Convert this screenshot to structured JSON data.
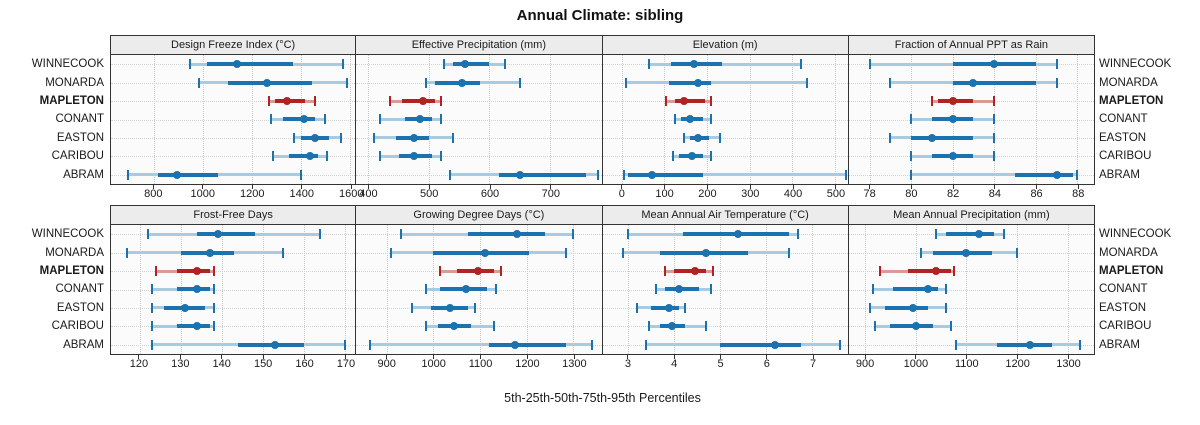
{
  "title": "Annual Climate: sibling",
  "caption": "5th-25th-50th-75th-95th Percentiles",
  "colors": {
    "series_blue": "#1b72ae",
    "series_blue_light": "#a8cbe2",
    "highlight_red": "#b22222",
    "highlight_red_light": "#d89c96",
    "panel_header_bg": "#ececec",
    "panel_border": "#333333",
    "grid": "#c9c9c9",
    "plot_bg": "#fbfbfb"
  },
  "chart_data": {
    "type": "dot-whisker percentile plot",
    "percentiles": [
      5,
      25,
      50,
      75,
      95
    ],
    "title": "Annual Climate: sibling",
    "legend_note": "5th-25th-50th-75th-95th Percentiles",
    "categories": [
      "WINNECOOK",
      "MONARDA",
      "MAPLETON",
      "CONANT",
      "EASTON",
      "CARIBOU",
      "ABRAM"
    ],
    "highlight_category": "MAPLETON",
    "grid": "dotted",
    "panels": [
      {
        "row": 0,
        "title": "Design Freeze Index (°C)",
        "ticks": [
          800,
          1000,
          1200,
          1400,
          1600
        ],
        "xlim": [
          625,
          1620
        ],
        "values": [
          [
            945,
            1015,
            1140,
            1365,
            1570
          ],
          [
            985,
            1100,
            1260,
            1445,
            1585
          ],
          [
            1270,
            1295,
            1340,
            1415,
            1455
          ],
          [
            1275,
            1325,
            1410,
            1455,
            1495
          ],
          [
            1370,
            1400,
            1455,
            1515,
            1560
          ],
          [
            1285,
            1350,
            1435,
            1470,
            1505
          ],
          [
            695,
            815,
            895,
            1060,
            1400
          ]
        ]
      },
      {
        "row": 0,
        "title": "Effective Precipitation (mm)",
        "ticks": [
          400,
          500,
          600,
          700
        ],
        "xlim": [
          380,
          785
        ],
        "values": [
          [
            525,
            540,
            560,
            600,
            625
          ],
          [
            495,
            510,
            555,
            585,
            650
          ],
          [
            435,
            455,
            490,
            510,
            520
          ],
          [
            420,
            460,
            485,
            505,
            520
          ],
          [
            410,
            445,
            475,
            500,
            540
          ],
          [
            420,
            450,
            475,
            505,
            520
          ],
          [
            535,
            615,
            650,
            760,
            780
          ]
        ]
      },
      {
        "row": 0,
        "title": "Elevation (m)",
        "ticks": [
          0,
          100,
          200,
          300,
          400,
          500
        ],
        "xlim": [
          -45,
          530
        ],
        "values": [
          [
            65,
            115,
            170,
            235,
            420
          ],
          [
            10,
            110,
            180,
            210,
            435
          ],
          [
            105,
            125,
            145,
            195,
            210
          ],
          [
            125,
            140,
            160,
            190,
            210
          ],
          [
            145,
            160,
            180,
            205,
            230
          ],
          [
            120,
            135,
            165,
            190,
            210
          ],
          [
            5,
            15,
            70,
            190,
            525
          ]
        ]
      },
      {
        "row": 0,
        "title": "Fraction of Annual PPT as Rain",
        "ticks": [
          78,
          80,
          82,
          84,
          86,
          88
        ],
        "xlim": [
          77,
          88.8
        ],
        "values": [
          [
            78,
            82,
            84,
            86,
            87
          ],
          [
            79,
            82,
            83,
            86,
            87
          ],
          [
            81,
            81.3,
            82,
            83,
            84
          ],
          [
            80,
            81,
            82,
            83,
            84
          ],
          [
            79,
            80,
            81,
            83,
            84
          ],
          [
            80,
            81,
            82,
            83,
            84
          ],
          [
            80,
            85,
            87,
            87.8,
            88
          ]
        ]
      },
      {
        "row": 1,
        "title": "Frost-Free Days",
        "ticks": [
          120,
          130,
          140,
          150,
          160,
          170
        ],
        "xlim": [
          113,
          172.5
        ],
        "values": [
          [
            122,
            134,
            139,
            148,
            164
          ],
          [
            117,
            130,
            137,
            143,
            155
          ],
          [
            124,
            129,
            134,
            137,
            138
          ],
          [
            123,
            129,
            134,
            137,
            138
          ],
          [
            123,
            126,
            131,
            136,
            138
          ],
          [
            123,
            129,
            134,
            137,
            138
          ],
          [
            123,
            144,
            153,
            160,
            170
          ]
        ]
      },
      {
        "row": 1,
        "title": "Growing Degree Days (°C)",
        "ticks": [
          900,
          1000,
          1100,
          1200,
          1300
        ],
        "xlim": [
          835,
          1360
        ],
        "values": [
          [
            930,
            1075,
            1180,
            1240,
            1300
          ],
          [
            910,
            1000,
            1110,
            1205,
            1285
          ],
          [
            1015,
            1050,
            1095,
            1130,
            1145
          ],
          [
            985,
            1015,
            1070,
            1115,
            1135
          ],
          [
            955,
            995,
            1035,
            1075,
            1090
          ],
          [
            985,
            1010,
            1045,
            1080,
            1130
          ],
          [
            865,
            1120,
            1175,
            1285,
            1340
          ]
        ]
      },
      {
        "row": 1,
        "title": "Mean Annual Air Temperature (°C)",
        "ticks": [
          3,
          4,
          5,
          6,
          7
        ],
        "xlim": [
          2.45,
          7.77
        ],
        "values": [
          [
            3.0,
            4.2,
            5.4,
            6.5,
            6.7
          ],
          [
            2.9,
            3.7,
            4.7,
            5.6,
            6.5
          ],
          [
            3.8,
            4.0,
            4.45,
            4.7,
            4.85
          ],
          [
            3.6,
            3.8,
            4.1,
            4.55,
            4.8
          ],
          [
            3.2,
            3.5,
            3.9,
            4.1,
            4.25
          ],
          [
            3.45,
            3.7,
            3.95,
            4.25,
            4.7
          ],
          [
            3.4,
            5.0,
            6.2,
            6.75,
            7.6
          ]
        ]
      },
      {
        "row": 1,
        "title": "Mean Annual Precipitation (mm)",
        "ticks": [
          900,
          1000,
          1100,
          1200,
          1300
        ],
        "xlim": [
          868,
          1352
        ],
        "values": [
          [
            1040,
            1060,
            1125,
            1155,
            1175
          ],
          [
            1010,
            1035,
            1100,
            1150,
            1200
          ],
          [
            930,
            985,
            1040,
            1070,
            1075
          ],
          [
            915,
            955,
            1025,
            1045,
            1060
          ],
          [
            910,
            940,
            995,
            1025,
            1060
          ],
          [
            920,
            950,
            1000,
            1035,
            1070
          ],
          [
            1080,
            1160,
            1225,
            1270,
            1325
          ]
        ]
      }
    ]
  }
}
